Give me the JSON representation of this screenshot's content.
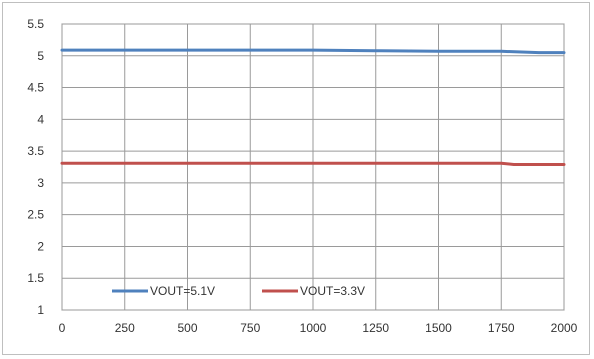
{
  "chart_data": {
    "type": "line",
    "title": "",
    "xlabel": "",
    "ylabel": "",
    "xlim": [
      0,
      2000
    ],
    "ylim": [
      1,
      5.5
    ],
    "x_ticks": [
      "0",
      "250",
      "500",
      "750",
      "1000",
      "1250",
      "1500",
      "1750",
      "2000"
    ],
    "y_ticks": [
      "1",
      "1.5",
      "2",
      "2.5",
      "3",
      "3.5",
      "4",
      "4.5",
      "5",
      "5.5"
    ],
    "grid": true,
    "legend_position": "bottom-left",
    "series": [
      {
        "name": "VOUT=5.1V",
        "color": "#4f81bd",
        "x": [
          0,
          250,
          500,
          750,
          1000,
          1250,
          1500,
          1750,
          1900,
          2000
        ],
        "y": [
          5.09,
          5.09,
          5.09,
          5.09,
          5.09,
          5.08,
          5.07,
          5.07,
          5.05,
          5.05
        ]
      },
      {
        "name": "VOUT=3.3V",
        "color": "#c0504d",
        "x": [
          0,
          250,
          500,
          750,
          1000,
          1250,
          1500,
          1750,
          1800,
          2000
        ],
        "y": [
          3.31,
          3.31,
          3.31,
          3.31,
          3.31,
          3.31,
          3.31,
          3.31,
          3.29,
          3.29
        ]
      }
    ]
  }
}
